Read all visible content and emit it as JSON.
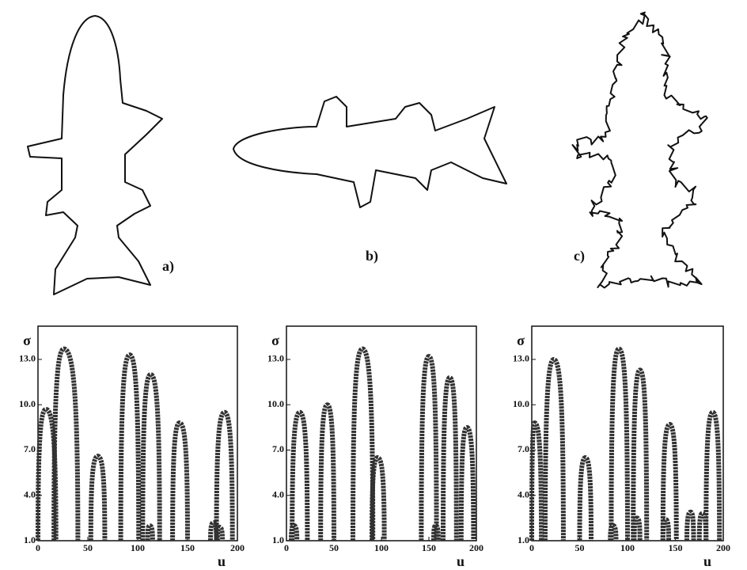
{
  "panels": [
    {
      "label": "a)"
    },
    {
      "label": "b)"
    },
    {
      "label": "c)"
    }
  ],
  "chart_data": [
    {
      "type": "css",
      "xlabel": "u",
      "ylabel": "σ",
      "xlim": [
        0,
        200
      ],
      "ylim": [
        1,
        15.2
      ],
      "xticks": [
        0,
        50,
        100,
        150,
        200
      ],
      "yticks": [
        {
          "value": 1,
          "label": "1.0"
        },
        {
          "value": 4,
          "label": "4.0"
        },
        {
          "value": 7,
          "label": "7.0"
        },
        {
          "value": 10,
          "label": "10.0"
        },
        {
          "value": 13,
          "label": "13.0"
        }
      ],
      "x": [
        8,
        26,
        60,
        92,
        113,
        142,
        187,
        112,
        176,
        182
      ],
      "values": [
        9.7,
        13.7,
        6.6,
        13.3,
        12.0,
        8.8,
        9.5,
        2.0,
        2.2,
        1.9
      ],
      "arch_start": [
        0,
        16,
        53,
        83,
        105,
        135,
        179,
        110,
        173,
        180
      ],
      "arch_end": [
        18,
        40,
        67,
        101,
        122,
        150,
        195,
        115,
        179,
        185
      ]
    },
    {
      "type": "css",
      "xlabel": "u",
      "ylabel": "σ",
      "xlim": [
        0,
        200
      ],
      "ylim": [
        1,
        15.2
      ],
      "xticks": [
        0,
        50,
        100,
        150,
        200
      ],
      "yticks": [
        {
          "value": 1,
          "label": "1.0"
        },
        {
          "value": 4,
          "label": "4.0"
        },
        {
          "value": 7,
          "label": "7.0"
        },
        {
          "value": 10,
          "label": "10.0"
        },
        {
          "value": 13,
          "label": "13.0"
        }
      ],
      "x": [
        14,
        43,
        80,
        96,
        150,
        172,
        190,
        8,
        157
      ],
      "values": [
        9.5,
        10.0,
        13.7,
        6.5,
        13.2,
        11.8,
        8.5,
        2.0,
        2.0
      ],
      "arch_start": [
        6,
        36,
        70,
        90,
        142,
        165,
        184,
        5,
        155
      ],
      "arch_end": [
        22,
        50,
        91,
        103,
        158,
        179,
        197,
        11,
        160
      ]
    },
    {
      "type": "css",
      "xlabel": "u",
      "ylabel": "σ",
      "xlim": [
        0,
        200
      ],
      "ylim": [
        1,
        15.2
      ],
      "xticks": [
        0,
        50,
        100,
        150,
        200
      ],
      "yticks": [
        {
          "value": 1,
          "label": "1.0"
        },
        {
          "value": 4,
          "label": "4.0"
        },
        {
          "value": 7,
          "label": "7.0"
        },
        {
          "value": 10,
          "label": "10.0"
        },
        {
          "value": 13,
          "label": "13.0"
        }
      ],
      "x": [
        3,
        23,
        56,
        91,
        113,
        144,
        189,
        85,
        110,
        140,
        166,
        178
      ],
      "values": [
        8.8,
        13.0,
        6.5,
        13.7,
        12.3,
        8.7,
        9.5,
        2.0,
        2.5,
        2.4,
        2.9,
        2.8
      ],
      "arch_start": [
        0,
        14,
        50,
        83,
        106,
        137,
        182,
        82,
        107,
        137,
        162,
        175
      ],
      "arch_end": [
        10,
        33,
        62,
        100,
        120,
        151,
        196,
        88,
        113,
        143,
        169,
        182
      ]
    }
  ]
}
